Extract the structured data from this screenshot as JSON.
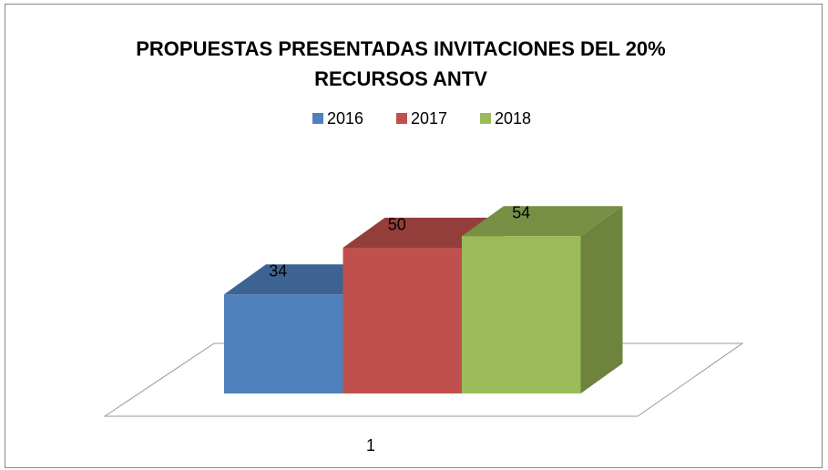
{
  "chart_data": {
    "type": "bar3d",
    "title": [
      "PROPUESTAS PRESENTADAS INVITACIONES DEL 20%",
      "RECURSOS ANTV"
    ],
    "categories": [
      "1"
    ],
    "series": [
      {
        "name": "2016",
        "color": "#4f81bd",
        "values": [
          34
        ]
      },
      {
        "name": "2017",
        "color": "#c0504d",
        "values": [
          50
        ]
      },
      {
        "name": "2018",
        "color": "#9bbb59",
        "values": [
          54
        ]
      }
    ],
    "legend": "top"
  }
}
